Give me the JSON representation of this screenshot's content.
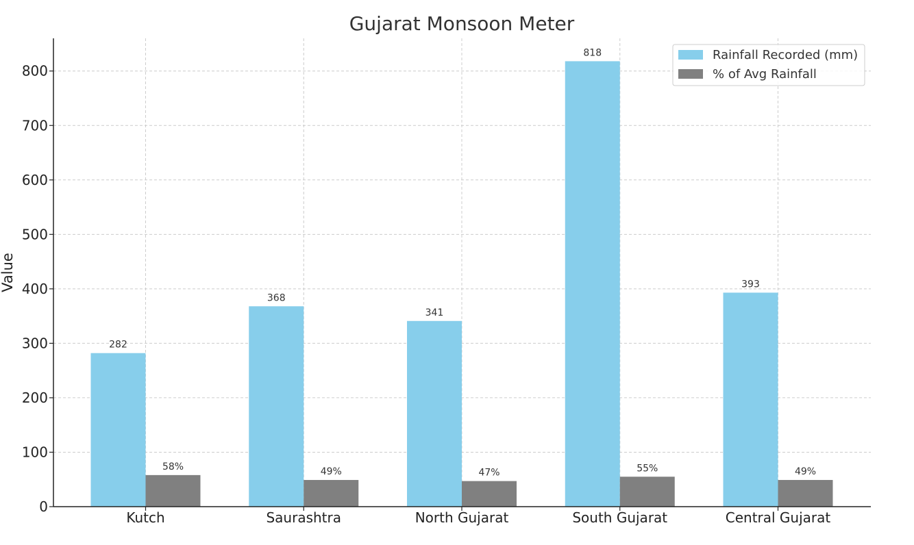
{
  "chart_data": {
    "type": "bar",
    "title": "Gujarat Monsoon Meter",
    "xlabel": "",
    "ylabel": "Value",
    "ylim": [
      0,
      860
    ],
    "yticks": [
      0,
      100,
      200,
      300,
      400,
      500,
      600,
      700,
      800
    ],
    "grid": true,
    "legend_position": "top-right",
    "categories": [
      "Kutch",
      "Saurashtra",
      "North Gujarat",
      "South Gujarat",
      "Central Gujarat"
    ],
    "series": [
      {
        "name": "Rainfall Recorded (mm)",
        "color": "#87ceeb",
        "values": [
          282,
          368,
          341,
          818,
          393
        ],
        "labels": [
          "282",
          "368",
          "341",
          "818",
          "393"
        ]
      },
      {
        "name": "% of Avg Rainfall",
        "color": "#808080",
        "values": [
          58,
          49,
          47,
          55,
          49
        ],
        "labels": [
          "58%",
          "49%",
          "47%",
          "55%",
          "49%"
        ]
      }
    ]
  }
}
